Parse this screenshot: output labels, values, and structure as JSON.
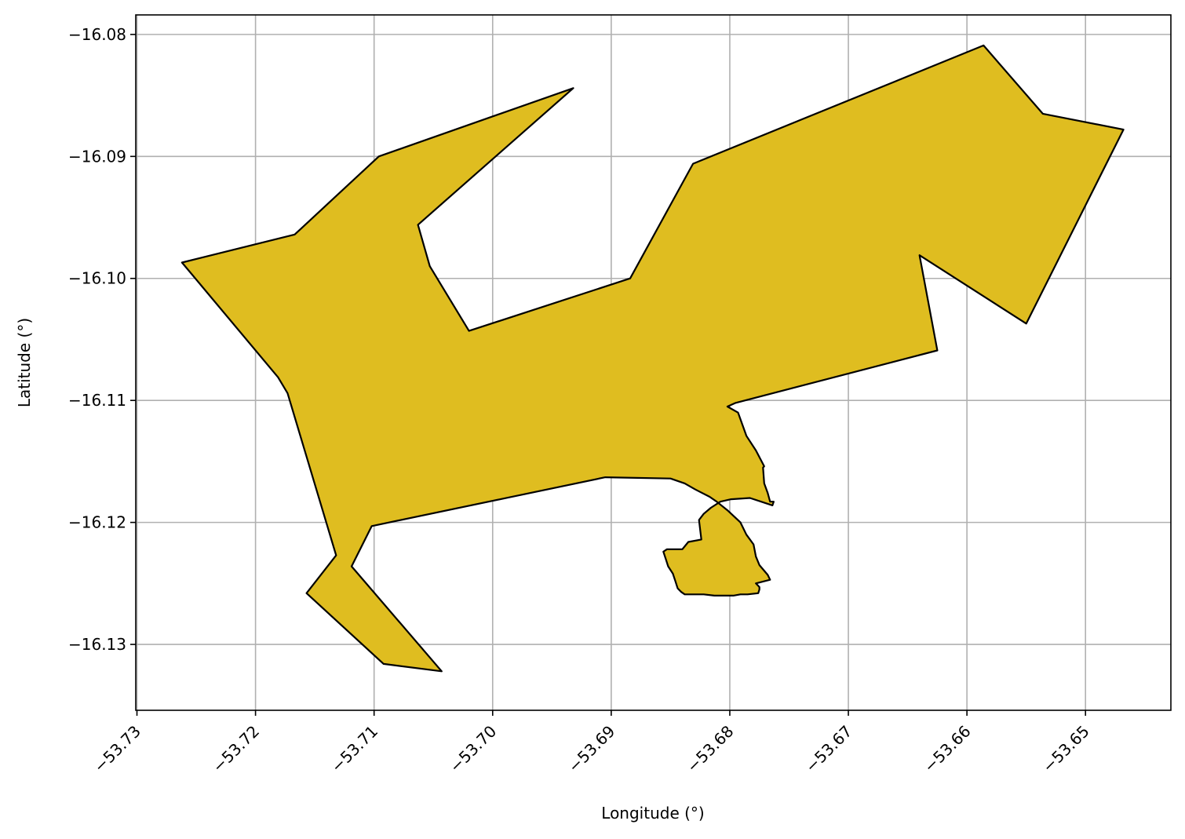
{
  "chart_data": {
    "type": "map",
    "title": "",
    "xlabel": "Longitude (°)",
    "ylabel": "Latitude (°)",
    "xlim": [
      -53.7301,
      -53.6428
    ],
    "ylim": [
      -16.1354,
      -16.0784
    ],
    "grid": true,
    "x_ticks": [
      -53.73,
      -53.72,
      -53.71,
      -53.7,
      -53.69,
      -53.68,
      -53.67,
      -53.66,
      -53.65
    ],
    "x_tick_labels": [
      "−53.73",
      "−53.72",
      "−53.71",
      "−53.70",
      "−53.69",
      "−53.68",
      "−53.67",
      "−53.66",
      "−53.65"
    ],
    "y_ticks": [
      -16.08,
      -16.09,
      -16.1,
      -16.11,
      -16.12,
      -16.13
    ],
    "y_tick_labels": [
      "−16.08",
      "−16.09",
      "−16.10",
      "−16.11",
      "−16.12",
      "−16.13"
    ],
    "fill_color": "#dfbd20",
    "edge_color": "#000000",
    "polygon": [
      [
        -53.7262,
        -16.0987
      ],
      [
        -53.7167,
        -16.0964
      ],
      [
        -53.7096,
        -16.09
      ],
      [
        -53.6932,
        -16.0844
      ],
      [
        -53.7063,
        -16.0956
      ],
      [
        -53.7053,
        -16.099
      ],
      [
        -53.702,
        -16.1043
      ],
      [
        -53.6884,
        -16.1
      ],
      [
        -53.6831,
        -16.0906
      ],
      [
        -53.6586,
        -16.0809
      ],
      [
        -53.6536,
        -16.0865
      ],
      [
        -53.6468,
        -16.0878
      ],
      [
        -53.655,
        -16.1037
      ],
      [
        -53.664,
        -16.0981
      ],
      [
        -53.6625,
        -16.1059
      ],
      [
        -53.6795,
        -16.1102
      ],
      [
        -53.6802,
        -16.1105
      ],
      [
        -53.6793,
        -16.111
      ],
      [
        -53.6786,
        -16.1129
      ],
      [
        -53.6778,
        -16.1141
      ],
      [
        -53.6771,
        -16.1154
      ],
      [
        -53.6772,
        -16.1155
      ],
      [
        -53.6771,
        -16.1168
      ],
      [
        -53.6768,
        -16.1176
      ],
      [
        -53.6766,
        -16.1183
      ],
      [
        -53.6763,
        -16.1183
      ],
      [
        -53.6764,
        -16.1186
      ],
      [
        -53.6783,
        -16.118
      ],
      [
        -53.6799,
        -16.1181
      ],
      [
        -53.6808,
        -16.1183
      ],
      [
        -53.6816,
        -16.1188
      ],
      [
        -53.6822,
        -16.1193
      ],
      [
        -53.6826,
        -16.1198
      ],
      [
        -53.6825,
        -16.1206
      ],
      [
        -53.6824,
        -16.1214
      ],
      [
        -53.6835,
        -16.1216
      ],
      [
        -53.684,
        -16.1222
      ],
      [
        -53.6853,
        -16.1222
      ],
      [
        -53.6856,
        -16.1224
      ],
      [
        -53.6854,
        -16.123
      ],
      [
        -53.6852,
        -16.1236
      ],
      [
        -53.6848,
        -16.1242
      ],
      [
        -53.6846,
        -16.1248
      ],
      [
        -53.6844,
        -16.1254
      ],
      [
        -53.6841,
        -16.1257
      ],
      [
        -53.6838,
        -16.1259
      ],
      [
        -53.6822,
        -16.1259
      ],
      [
        -53.6813,
        -16.126
      ],
      [
        -53.6797,
        -16.126
      ],
      [
        -53.6791,
        -16.1259
      ],
      [
        -53.6785,
        -16.1259
      ],
      [
        -53.6776,
        -16.1258
      ],
      [
        -53.6775,
        -16.1255
      ],
      [
        -53.6775,
        -16.1253
      ],
      [
        -53.6778,
        -16.125
      ],
      [
        -53.6766,
        -16.1247
      ],
      [
        -53.6768,
        -16.1243
      ],
      [
        -53.6775,
        -16.1235
      ],
      [
        -53.6778,
        -16.1228
      ],
      [
        -53.678,
        -16.1218
      ],
      [
        -53.6786,
        -16.121
      ],
      [
        -53.6791,
        -16.12
      ],
      [
        -53.6802,
        -16.119
      ],
      [
        -53.6811,
        -16.1183
      ],
      [
        -53.6817,
        -16.1179
      ],
      [
        -53.6829,
        -16.1173
      ],
      [
        -53.6838,
        -16.1168
      ],
      [
        -53.685,
        -16.1164
      ],
      [
        -53.6905,
        -16.1163
      ],
      [
        -53.7102,
        -16.1203
      ],
      [
        -53.7119,
        -16.1236
      ],
      [
        -53.7043,
        -16.1322
      ],
      [
        -53.7092,
        -16.1316
      ],
      [
        -53.7157,
        -16.1258
      ],
      [
        -53.7132,
        -16.1227
      ],
      [
        -53.7173,
        -16.1094
      ],
      [
        -53.7181,
        -16.1081
      ]
    ]
  }
}
